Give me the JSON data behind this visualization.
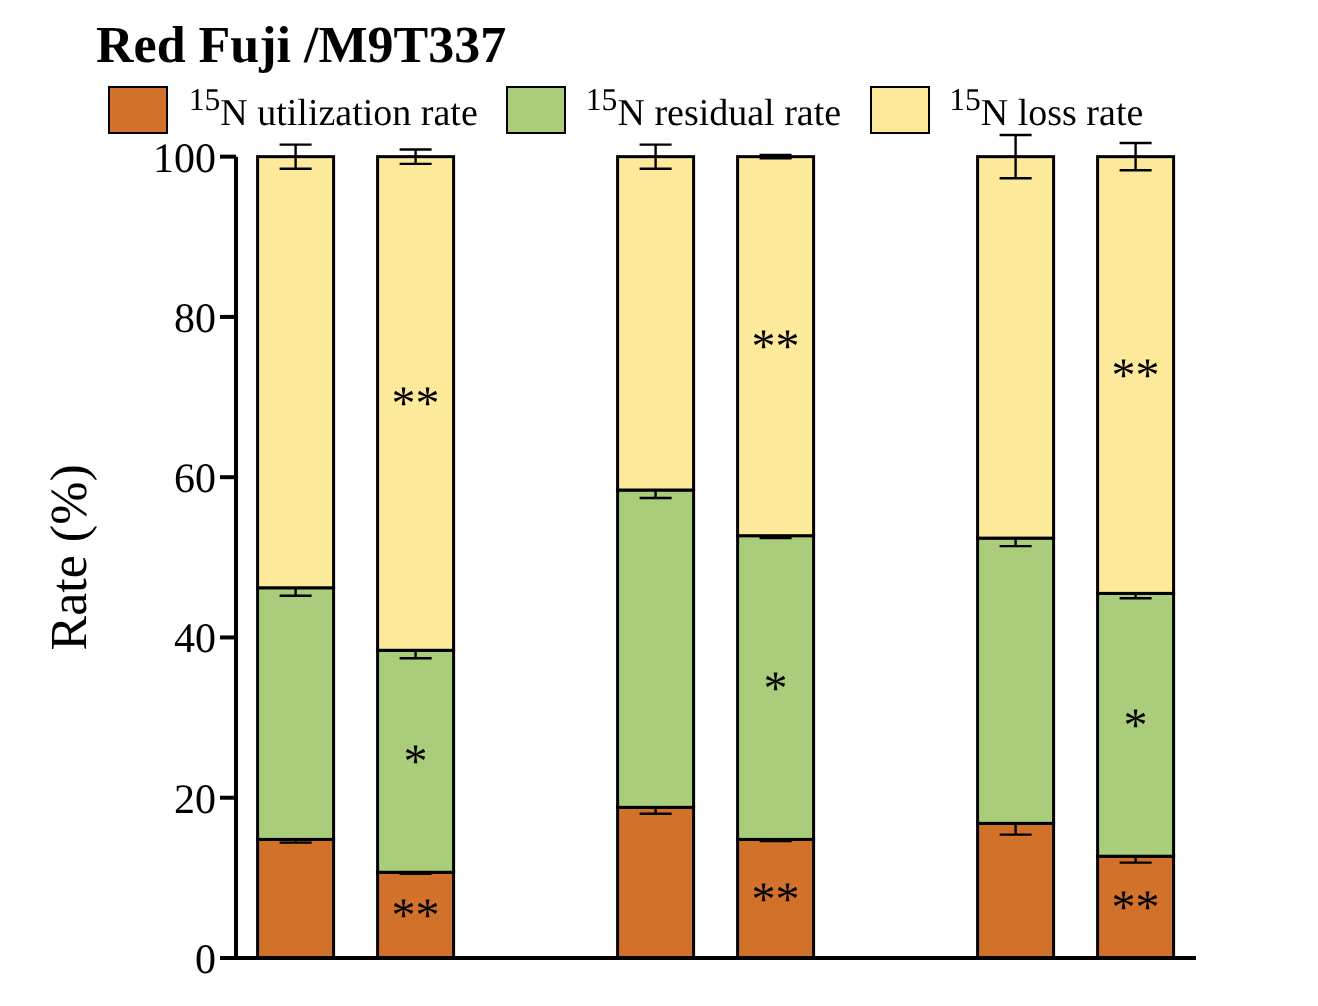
{
  "chart_data": {
    "type": "bar",
    "stacked": true,
    "title": "Red Fuji /M9T337",
    "ylabel": "Rate (%)",
    "categories": [
      null,
      null,
      null,
      null,
      null,
      null,
      null,
      null
    ],
    "series": [
      {
        "name": "$^{15}$N utilization rate",
        "color": "#d2722a",
        "values": [
          14.8,
          10.7,
          null,
          18.8,
          14.8,
          null,
          16.8,
          12.7
        ],
        "errors": [
          0.4,
          0.2,
          null,
          0.8,
          0.2,
          null,
          1.4,
          0.8
        ],
        "value_labels": [
          null,
          "**",
          null,
          null,
          "**",
          null,
          null,
          "**"
        ]
      },
      {
        "name": "$^{15}$N residual rate",
        "color": "#a9cd7a",
        "values": [
          31.4,
          27.7,
          null,
          39.6,
          37.9,
          null,
          35.6,
          32.8
        ],
        "errors": [
          1.0,
          1.0,
          null,
          1.0,
          0.3,
          null,
          1.0,
          0.6
        ],
        "value_labels": [
          null,
          "*",
          null,
          null,
          "*",
          null,
          null,
          "*"
        ]
      },
      {
        "name": "$^{15}$N loss rate",
        "color": "#fde99a",
        "values": [
          53.8,
          61.6,
          null,
          41.6,
          47.3,
          null,
          47.6,
          54.5
        ],
        "errors": [
          1.5,
          0.9,
          null,
          1.5,
          0.2,
          null,
          2.7,
          1.7
        ],
        "value_labels": [
          null,
          "**",
          null,
          null,
          "**",
          null,
          null,
          "**"
        ]
      }
    ],
    "ylim": [
      0,
      100
    ],
    "yticks": [
      0,
      20,
      40,
      60,
      80,
      100
    ],
    "legend": "top"
  }
}
